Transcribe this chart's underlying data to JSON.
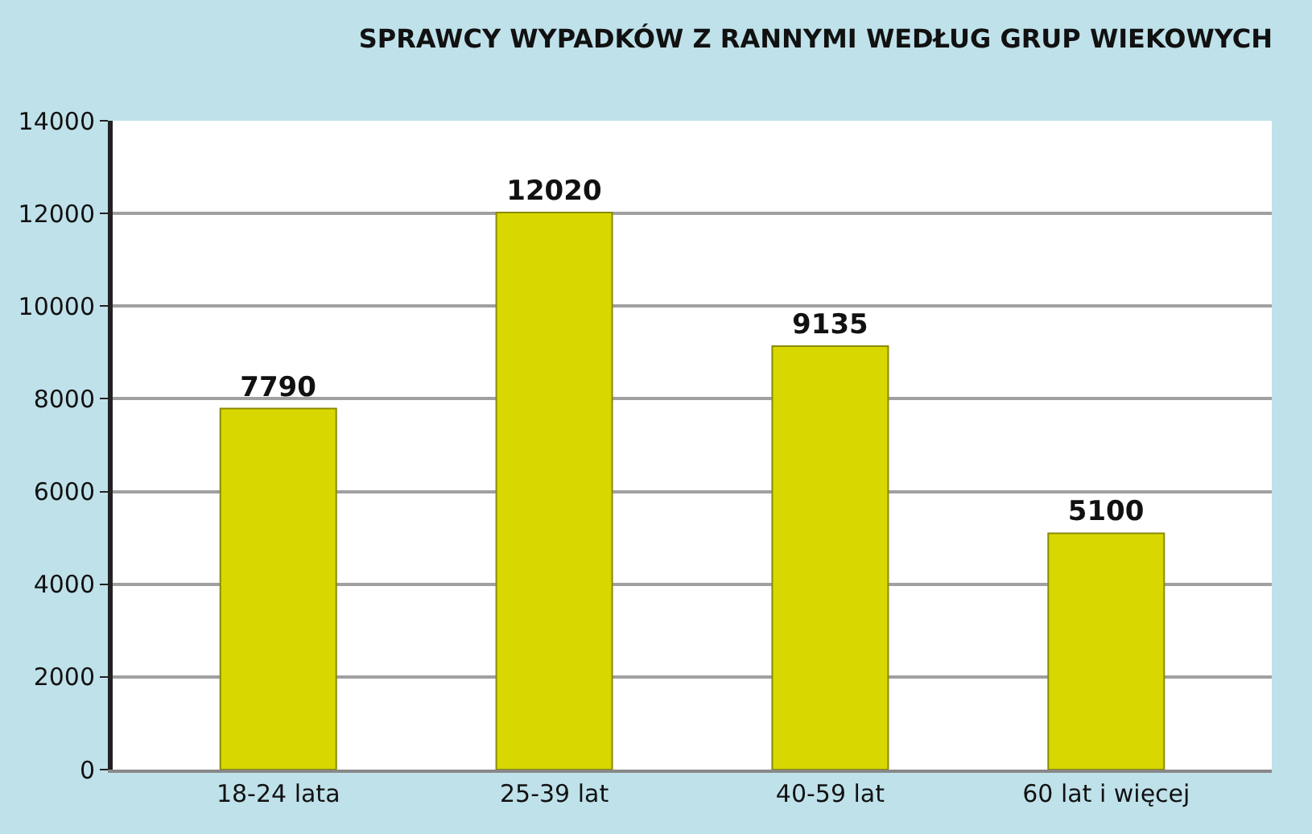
{
  "chart_data": {
    "type": "bar",
    "title": "SPRAWCY WYPADKÓW Z RANNYMI WEDŁUG GRUP WIEKOWYCH",
    "categories": [
      "18-24 lata",
      "25-39 lat",
      "40-59 lat",
      "60 lat i więcej"
    ],
    "values": [
      7790,
      12020,
      9135,
      5100
    ],
    "color": "#d8d800",
    "ylim": [
      0,
      14000
    ],
    "yticks": [
      0,
      2000,
      4000,
      6000,
      8000,
      10000,
      12000,
      14000
    ],
    "grid": "y",
    "data_labels": true
  }
}
